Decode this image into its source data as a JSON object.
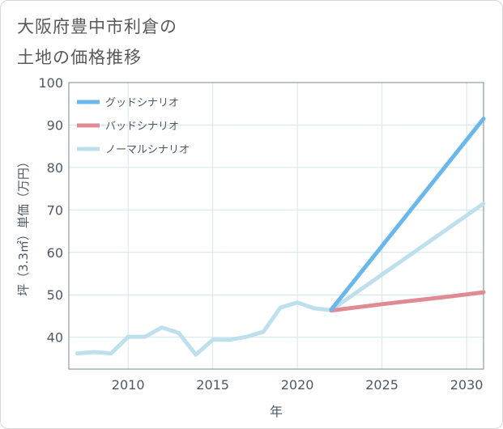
{
  "chart_data": {
    "type": "line",
    "title_lines": [
      "大阪府豊中市利倉の",
      "土地の価格推移"
    ],
    "xlabel": "年",
    "ylabel": "坪（3.3㎡）単価（万円）",
    "xlim": [
      2006.5,
      2031
    ],
    "ylim": [
      32.5,
      100
    ],
    "x_ticks": [
      2010,
      2015,
      2020,
      2025,
      2030
    ],
    "y_ticks": [
      40,
      50,
      60,
      70,
      80,
      90,
      100
    ],
    "grid": true,
    "legend_position": "top-left",
    "series": [
      {
        "name": "グッドシナリオ",
        "color": "#6ab7ec",
        "points": [
          [
            2022,
            46.5
          ],
          [
            2031,
            91.5
          ]
        ]
      },
      {
        "name": "バッドシナリオ",
        "color": "#e08a94",
        "points": [
          [
            2022,
            46.3
          ],
          [
            2025,
            47.8
          ],
          [
            2027,
            48.7
          ],
          [
            2029,
            49.6
          ],
          [
            2031,
            50.6
          ]
        ]
      },
      {
        "name": "ノーマルシナリオ",
        "color": "#bde0ec",
        "points": [
          [
            2007,
            36.2
          ],
          [
            2008,
            36.5
          ],
          [
            2009,
            36.2
          ],
          [
            2010,
            40.1
          ],
          [
            2011,
            40.1
          ],
          [
            2012,
            42.3
          ],
          [
            2013,
            41.0
          ],
          [
            2014,
            35.9
          ],
          [
            2015,
            39.4
          ],
          [
            2016,
            39.4
          ],
          [
            2017,
            40.1
          ],
          [
            2018,
            41.3
          ],
          [
            2019,
            47.0
          ],
          [
            2020,
            48.2
          ],
          [
            2021,
            46.8
          ],
          [
            2022,
            46.4
          ],
          [
            2031,
            71.5
          ]
        ]
      }
    ]
  }
}
